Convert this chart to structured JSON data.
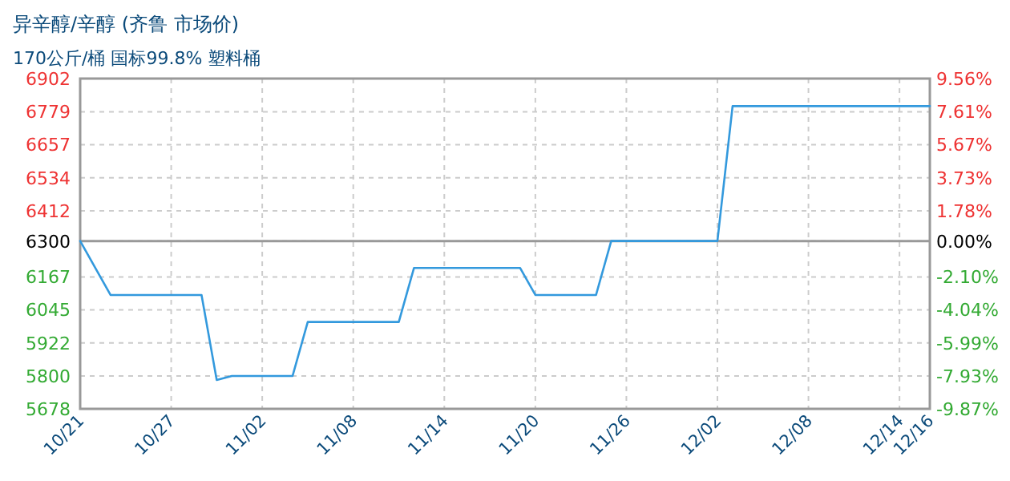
{
  "chart_data": {
    "type": "line",
    "title": "异辛醇/辛醇 (齐鲁 市场价)",
    "subtitle": "170公斤/桶 国标99.8% 塑料桶",
    "x": [
      "--10-21",
      "--10-23",
      "--10-29",
      "--10-30",
      "--10-31",
      "--11-04",
      "--11-05",
      "--11-11",
      "--11-12",
      "--11-19",
      "--11-20",
      "--11-24",
      "--11-25",
      "--12-02",
      "--12-03",
      "--12-16"
    ],
    "series": [
      {
        "color": "#3399dd",
        "values": [
          6300,
          6100,
          6100,
          5785,
          5800,
          5800,
          6000,
          6000,
          6200,
          6200,
          6100,
          6100,
          6300,
          6300,
          6800,
          6800
        ]
      }
    ],
    "xlim": [
      "--10-21",
      "--12-16"
    ],
    "xticks": [
      {
        "value": "--10-21",
        "label": "10/21"
      },
      {
        "value": "--10-27",
        "label": "10/27"
      },
      {
        "value": "--11-02",
        "label": "11/02"
      },
      {
        "value": "--11-08",
        "label": "11/08"
      },
      {
        "value": "--11-14",
        "label": "11/14"
      },
      {
        "value": "--11-20",
        "label": "11/20"
      },
      {
        "value": "--11-26",
        "label": "11/26"
      },
      {
        "value": "--12-02",
        "label": "12/02"
      },
      {
        "value": "--12-08",
        "label": "12/08"
      },
      {
        "value": "--12-14",
        "label": "12/14"
      },
      {
        "value": "--12-16",
        "label": "12/16"
      }
    ],
    "ylim": [
      5678,
      6902
    ],
    "yticks": [
      6902,
      6779,
      6657,
      6534,
      6412,
      6300,
      6167,
      6045,
      5922,
      5800,
      5678
    ],
    "y2lim": [
      -9.87,
      9.56
    ],
    "y2ticks": [
      {
        "value": 9.56,
        "label": "9.56%"
      },
      {
        "value": 7.61,
        "label": "7.61%"
      },
      {
        "value": 5.67,
        "label": "5.67%"
      },
      {
        "value": 3.73,
        "label": "3.73%"
      },
      {
        "value": 1.78,
        "label": "1.78%"
      },
      {
        "value": 0,
        "label": "0.00%"
      },
      {
        "value": -2.1,
        "label": "-2.10%"
      },
      {
        "value": -4.04,
        "label": "-4.04%"
      },
      {
        "value": -5.99,
        "label": "-5.99%"
      },
      {
        "value": -7.93,
        "label": "-7.93%"
      },
      {
        "value": -9.87,
        "label": "-9.87%"
      }
    ],
    "ref_lines": [
      {
        "axis": "y",
        "value": 6300,
        "color": "#999999"
      }
    ],
    "grid": true,
    "marker": "none",
    "line_style": "solid"
  }
}
